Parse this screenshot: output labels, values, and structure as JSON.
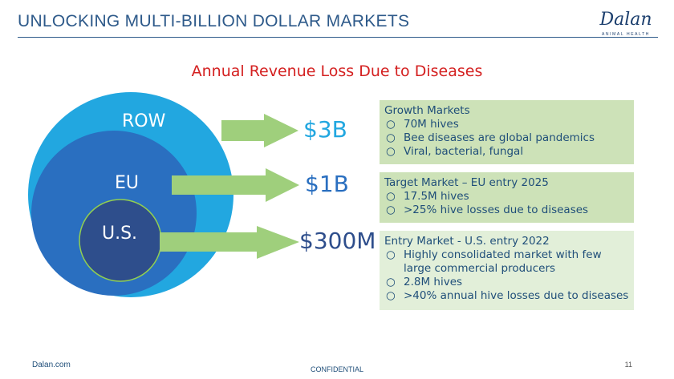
{
  "header": {
    "title": "UNLOCKING MULTI-BILLION DOLLAR MARKETS"
  },
  "logo": {
    "word": "Dalan",
    "sub": "ANIMAL HEALTH"
  },
  "slide": {
    "subtitle": "Annual Revenue Loss Due to Diseases"
  },
  "diagram": {
    "circles": [
      {
        "label": "ROW",
        "color": "#22a7e0"
      },
      {
        "label": "EU",
        "color": "#2a6fc0"
      },
      {
        "label": "U.S.",
        "color": "#2e4e8c"
      }
    ],
    "values": [
      {
        "text": "$3B",
        "color": "#22a7e0"
      },
      {
        "text": "$1B",
        "color": "#2a6fc0"
      },
      {
        "text": "$300M",
        "color": "#2e4e8c"
      }
    ],
    "arrow_color": "#9fcf7c"
  },
  "boxes": [
    {
      "heading": "Growth Markets",
      "bullets": [
        "70M hives",
        "Bee diseases are global pandemics",
        "Viral, bacterial, fungal"
      ]
    },
    {
      "heading": "Target Market – EU entry 2025",
      "bullets": [
        "17.5M hives",
        ">25% hive losses due to diseases"
      ]
    },
    {
      "heading": "Entry Market - U.S. entry 2022",
      "bullets": [
        "Highly consolidated market with few large commercial producers",
        "2.8M hives",
        ">40% annual hive losses due to diseases"
      ]
    }
  ],
  "bullet_mark": "○",
  "footer": {
    "site": "Dalan.com",
    "confidential": "CONFIDENTIAL",
    "page": "11"
  }
}
